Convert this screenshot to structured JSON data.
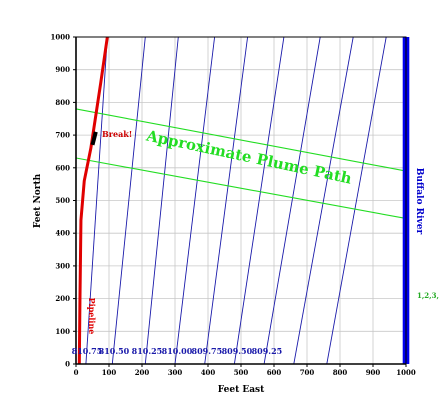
{
  "chart_data": {
    "type": "line",
    "title": "",
    "xlabel": "Feet East",
    "ylabel": "Feet North",
    "xlim": [
      0,
      1000
    ],
    "ylim": [
      0,
      1000
    ],
    "grid": true,
    "x_ticks": [
      "0",
      "100",
      "200",
      "300",
      "400",
      "500",
      "600",
      "700",
      "800",
      "900",
      "1000"
    ],
    "y_ticks": [
      "0",
      "100",
      "200",
      "300",
      "400",
      "500",
      "600",
      "700",
      "800",
      "900",
      "1000"
    ],
    "contours": {
      "color": "#1a1aaa",
      "levels": [
        {
          "label": "810.75",
          "x_bottom": 30,
          "x_top": 95
        },
        {
          "label": "810.50",
          "x_bottom": 110,
          "x_top": 210
        },
        {
          "label": "810.25",
          "x_bottom": 210,
          "x_top": 310
        },
        {
          "label": "810.00",
          "x_bottom": 300,
          "x_top": 420
        },
        {
          "label": "809.75",
          "x_bottom": 390,
          "x_top": 520
        },
        {
          "label": "809.50",
          "x_bottom": 480,
          "x_top": 630
        },
        {
          "label": "809.25",
          "x_bottom": 570,
          "x_top": 740
        },
        {
          "label": "",
          "x_bottom": 660,
          "x_top": 840
        },
        {
          "label": "",
          "x_bottom": 760,
          "x_top": 940
        }
      ]
    },
    "pipeline": {
      "label": "Pipeline",
      "color": "#e00000",
      "points": [
        [
          10,
          0
        ],
        [
          12,
          200
        ],
        [
          15,
          440
        ],
        [
          25,
          560
        ],
        [
          45,
          660
        ],
        [
          60,
          760
        ],
        [
          75,
          860
        ],
        [
          95,
          1000
        ]
      ]
    },
    "break_point": {
      "label": "Break!",
      "label_color": "#cc0000",
      "from": [
        50,
        670
      ],
      "to": [
        60,
        710
      ]
    },
    "plume": {
      "label": "Approximate Plume Path",
      "color": "#22dd22",
      "upper_line": [
        [
          0,
          780
        ],
        [
          1000,
          590
        ]
      ],
      "lower_line": [
        [
          0,
          630
        ],
        [
          1000,
          445
        ]
      ]
    },
    "river": {
      "label": "Buffalo River",
      "color": "#0000ee",
      "x_range": [
        990,
        1010
      ]
    },
    "side_note": {
      "text": "1,2,3,",
      "color": "#22aa22"
    }
  }
}
